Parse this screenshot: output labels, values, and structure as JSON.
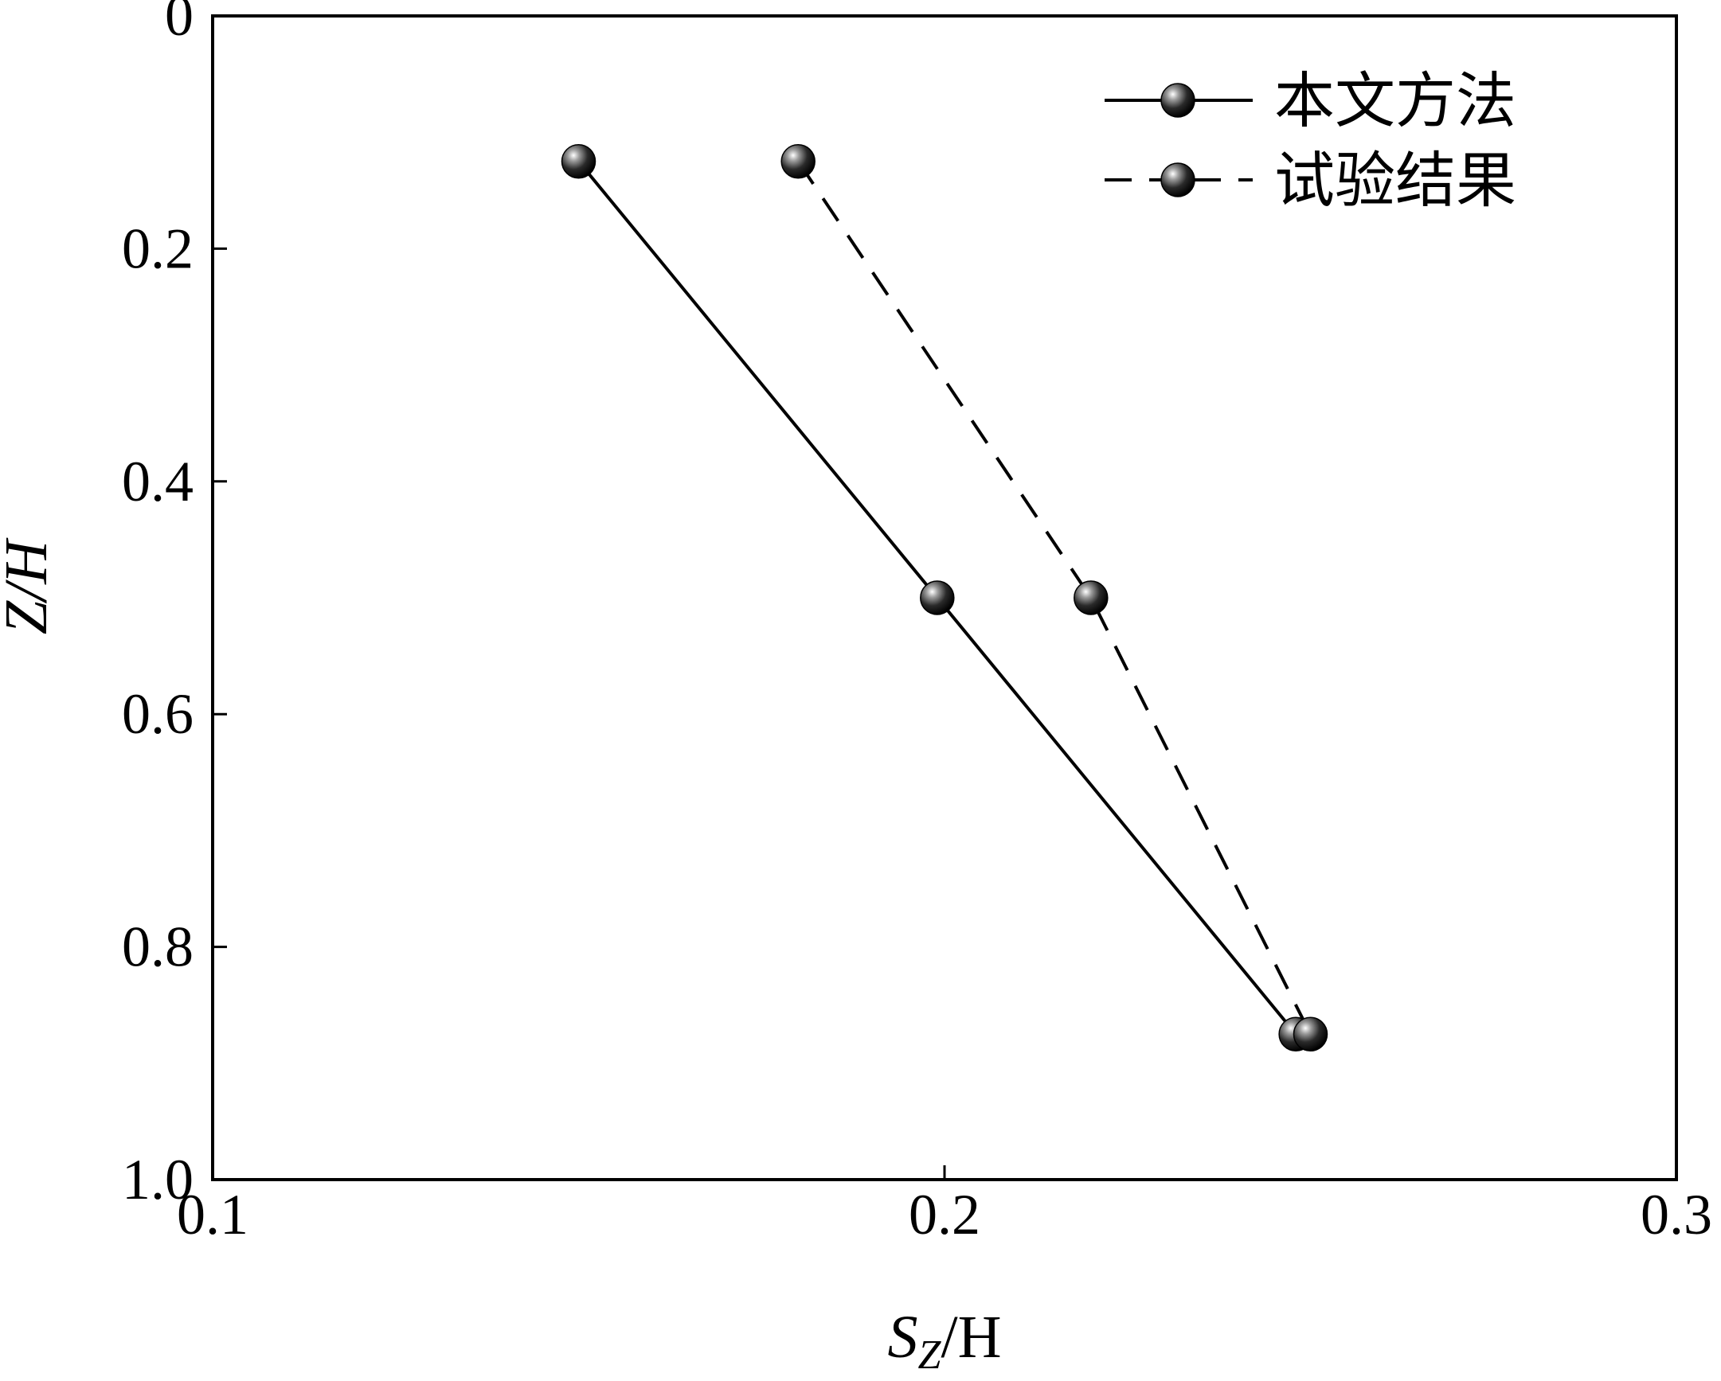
{
  "chart_data": {
    "type": "line",
    "xlabel": {
      "main": "S",
      "sub": "Z",
      "rest": "/H"
    },
    "ylabel": "Z/H",
    "xlim": [
      0.1,
      0.3
    ],
    "ylim": [
      0,
      1.0
    ],
    "y_inverted": true,
    "xticks": [
      {
        "value": 0.1,
        "label": "0.1"
      },
      {
        "value": 0.2,
        "label": "0.2"
      },
      {
        "value": 0.3,
        "label": "0.3"
      }
    ],
    "yticks": [
      {
        "value": 0.0,
        "label": "0"
      },
      {
        "value": 0.2,
        "label": "0.2"
      },
      {
        "value": 0.4,
        "label": "0.4"
      },
      {
        "value": 0.6,
        "label": "0.6"
      },
      {
        "value": 0.8,
        "label": "0.8"
      },
      {
        "value": 1.0,
        "label": "1.0"
      }
    ],
    "grid": false,
    "legend_position": "top-right",
    "series": [
      {
        "name": "本文方法",
        "style": "solid",
        "color": "#000000",
        "points": [
          {
            "x": 0.15,
            "y": 0.125
          },
          {
            "x": 0.199,
            "y": 0.5
          },
          {
            "x": 0.248,
            "y": 0.875
          }
        ]
      },
      {
        "name": "试验结果",
        "style": "dashed",
        "color": "#000000",
        "points": [
          {
            "x": 0.18,
            "y": 0.125
          },
          {
            "x": 0.22,
            "y": 0.5
          },
          {
            "x": 0.25,
            "y": 0.875
          }
        ]
      }
    ]
  }
}
